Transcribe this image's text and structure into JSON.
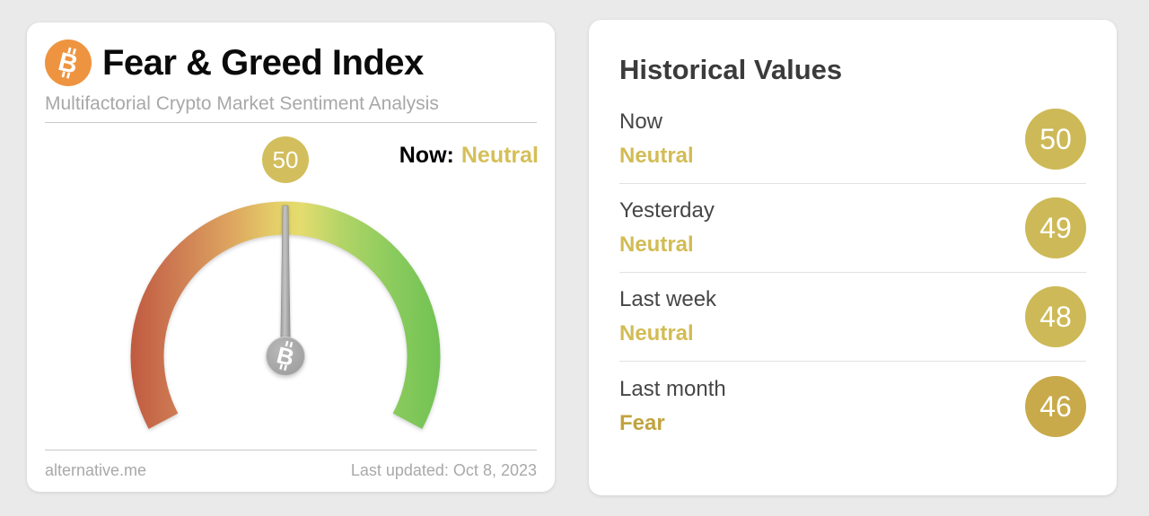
{
  "gauge_card": {
    "title": "Fear & Greed Index",
    "subtitle": "Multifactorial Crypto Market Sentiment Analysis",
    "value": "50",
    "now_label": "Now:",
    "now_value": "Neutral",
    "source": "alternative.me",
    "last_updated": "Last updated: Oct 8, 2023",
    "colors": {
      "badge": "#d2be5d",
      "now_value": "#d5bf58",
      "bitcoin_orange": "#ee9440"
    }
  },
  "history_card": {
    "title": "Historical Values",
    "rows": [
      {
        "period": "Now",
        "sentiment": "Neutral",
        "value": "50",
        "sentiment_color": "#d2bc55",
        "badge_color": "#cdb957"
      },
      {
        "period": "Yesterday",
        "sentiment": "Neutral",
        "value": "49",
        "sentiment_color": "#d2bc55",
        "badge_color": "#cdb957"
      },
      {
        "period": "Last week",
        "sentiment": "Neutral",
        "value": "48",
        "sentiment_color": "#d2bc55",
        "badge_color": "#cdb957"
      },
      {
        "period": "Last month",
        "sentiment": "Fear",
        "value": "46",
        "sentiment_color": "#c1a33f",
        "badge_color": "#c8aa4b"
      }
    ]
  },
  "chart_data": {
    "type": "gauge",
    "title": "Fear & Greed Index",
    "value": 50,
    "min": 0,
    "max": 100,
    "classification": "Neutral",
    "scale_colors": [
      "#c05a40",
      "#cd7a52",
      "#dda45f",
      "#e4dc6e",
      "#b3d467",
      "#8acb5d",
      "#72c253"
    ],
    "historical": [
      {
        "period": "Now",
        "classification": "Neutral",
        "value": 50
      },
      {
        "period": "Yesterday",
        "classification": "Neutral",
        "value": 49
      },
      {
        "period": "Last week",
        "classification": "Neutral",
        "value": 48
      },
      {
        "period": "Last month",
        "classification": "Fear",
        "value": 46
      }
    ]
  }
}
